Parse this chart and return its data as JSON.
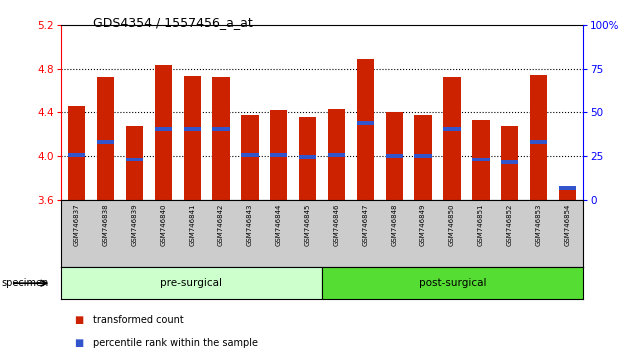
{
  "title": "GDS4354 / 1557456_a_at",
  "specimens": [
    "GSM746837",
    "GSM746838",
    "GSM746839",
    "GSM746840",
    "GSM746841",
    "GSM746842",
    "GSM746843",
    "GSM746844",
    "GSM746845",
    "GSM746846",
    "GSM746847",
    "GSM746848",
    "GSM746849",
    "GSM746850",
    "GSM746851",
    "GSM746852",
    "GSM746853",
    "GSM746854"
  ],
  "bar_tops": [
    4.46,
    4.72,
    4.28,
    4.83,
    4.73,
    4.72,
    4.38,
    4.42,
    4.36,
    4.43,
    4.89,
    4.4,
    4.38,
    4.72,
    4.33,
    4.28,
    4.74,
    3.7
  ],
  "blue_markers": [
    4.01,
    4.13,
    3.97,
    4.25,
    4.25,
    4.25,
    4.01,
    4.01,
    3.99,
    4.01,
    4.3,
    4.0,
    4.0,
    4.25,
    3.97,
    3.95,
    4.13,
    3.71
  ],
  "pre_surgical_count": 9,
  "post_surgical_count": 9,
  "y_min": 3.6,
  "y_max": 5.2,
  "y_ticks_major": [
    3.6,
    4.0,
    4.4,
    4.8,
    5.2
  ],
  "y_ticks_grid": [
    4.0,
    4.4,
    4.8
  ],
  "y2_ticks": [
    0,
    25,
    50,
    75,
    100
  ],
  "bar_color": "#cc2200",
  "blue_color": "#3355cc",
  "pre_color": "#ccffcc",
  "post_color": "#55dd33",
  "label_area_color": "#cccccc",
  "legend_red": "transformed count",
  "legend_blue": "percentile rank within the sample",
  "specimen_label": "specimen",
  "pre_label": "pre-surgical",
  "post_label": "post-surgical"
}
